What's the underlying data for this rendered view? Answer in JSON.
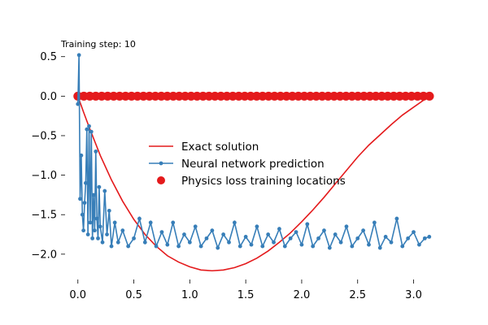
{
  "chart_data": {
    "type": "line",
    "annotation": "Training step: 10",
    "xlim": [
      -0.1,
      3.14159
    ],
    "ylim": [
      -2.3,
      0.6
    ],
    "x_ticks": [
      0.0,
      0.5,
      1.0,
      1.5,
      2.0,
      2.5,
      3.0
    ],
    "x_tick_labels": [
      "0.0",
      "0.5",
      "1.0",
      "1.5",
      "2.0",
      "2.5",
      "3.0"
    ],
    "y_ticks": [
      0.5,
      0.0,
      -0.5,
      -1.0,
      -1.5,
      -2.0
    ],
    "y_tick_labels": [
      "0.5",
      "0.0",
      "−0.5",
      "−1.0",
      "−1.5",
      "−2.0"
    ],
    "grid": false,
    "legend_position": "center",
    "colors": {
      "exact": "#e41a1c",
      "prediction": "#377eb8",
      "physics_points": "#e41a1c"
    },
    "series": [
      {
        "name": "Exact solution",
        "kind": "line",
        "x": [
          0.0,
          0.05,
          0.1,
          0.2,
          0.3,
          0.4,
          0.5,
          0.6,
          0.7,
          0.8,
          0.9,
          1.0,
          1.1,
          1.2,
          1.3,
          1.4,
          1.5,
          1.6,
          1.7,
          1.8,
          1.9,
          2.0,
          2.1,
          2.2,
          2.3,
          2.4,
          2.5,
          2.6,
          2.7,
          2.8,
          2.9,
          3.0,
          3.1,
          3.14159
        ],
        "y": [
          0.0,
          -0.2,
          -0.39,
          -0.75,
          -1.06,
          -1.33,
          -1.56,
          -1.75,
          -1.9,
          -2.02,
          -2.1,
          -2.16,
          -2.2,
          -2.21,
          -2.2,
          -2.17,
          -2.12,
          -2.05,
          -1.96,
          -1.85,
          -1.73,
          -1.59,
          -1.44,
          -1.28,
          -1.11,
          -0.94,
          -0.77,
          -0.62,
          -0.49,
          -0.36,
          -0.24,
          -0.14,
          -0.04,
          0.0
        ]
      },
      {
        "name": "Neural network prediction",
        "kind": "line-markers",
        "x": [
          0.0,
          0.01,
          0.02,
          0.03,
          0.04,
          0.05,
          0.06,
          0.07,
          0.08,
          0.09,
          0.1,
          0.11,
          0.12,
          0.13,
          0.14,
          0.15,
          0.16,
          0.17,
          0.18,
          0.19,
          0.2,
          0.22,
          0.24,
          0.26,
          0.28,
          0.3,
          0.33,
          0.36,
          0.4,
          0.45,
          0.5,
          0.55,
          0.6,
          0.65,
          0.7,
          0.75,
          0.8,
          0.85,
          0.9,
          0.95,
          1.0,
          1.05,
          1.1,
          1.15,
          1.2,
          1.25,
          1.3,
          1.35,
          1.4,
          1.45,
          1.5,
          1.55,
          1.6,
          1.65,
          1.7,
          1.75,
          1.8,
          1.85,
          1.9,
          1.95,
          2.0,
          2.05,
          2.1,
          2.15,
          2.2,
          2.25,
          2.3,
          2.35,
          2.4,
          2.45,
          2.5,
          2.55,
          2.6,
          2.65,
          2.7,
          2.75,
          2.8,
          2.85,
          2.9,
          2.95,
          3.0,
          3.05,
          3.1,
          3.14
        ],
        "y": [
          -0.1,
          0.52,
          -1.3,
          -0.75,
          -1.5,
          -1.7,
          -1.35,
          -1.1,
          -0.42,
          -1.75,
          -0.38,
          -1.6,
          -0.45,
          -1.8,
          -1.25,
          -1.7,
          -0.7,
          -1.55,
          -1.8,
          -1.15,
          -1.65,
          -1.85,
          -1.2,
          -1.75,
          -1.45,
          -1.9,
          -1.6,
          -1.85,
          -1.7,
          -1.9,
          -1.8,
          -1.55,
          -1.85,
          -1.6,
          -1.9,
          -1.72,
          -1.88,
          -1.6,
          -1.9,
          -1.75,
          -1.85,
          -1.65,
          -1.9,
          -1.8,
          -1.7,
          -1.92,
          -1.75,
          -1.85,
          -1.6,
          -1.9,
          -1.78,
          -1.88,
          -1.65,
          -1.9,
          -1.75,
          -1.85,
          -1.68,
          -1.9,
          -1.8,
          -1.72,
          -1.88,
          -1.62,
          -1.9,
          -1.8,
          -1.7,
          -1.92,
          -1.75,
          -1.85,
          -1.65,
          -1.9,
          -1.8,
          -1.7,
          -1.88,
          -1.6,
          -1.92,
          -1.78,
          -1.85,
          -1.55,
          -1.9,
          -1.8,
          -1.72,
          -1.88,
          -1.8,
          -1.78
        ]
      },
      {
        "name": "Physics loss training locations",
        "kind": "scatter",
        "x_range": [
          0.0,
          3.14159
        ],
        "y": 0.0,
        "count": 60
      }
    ]
  }
}
